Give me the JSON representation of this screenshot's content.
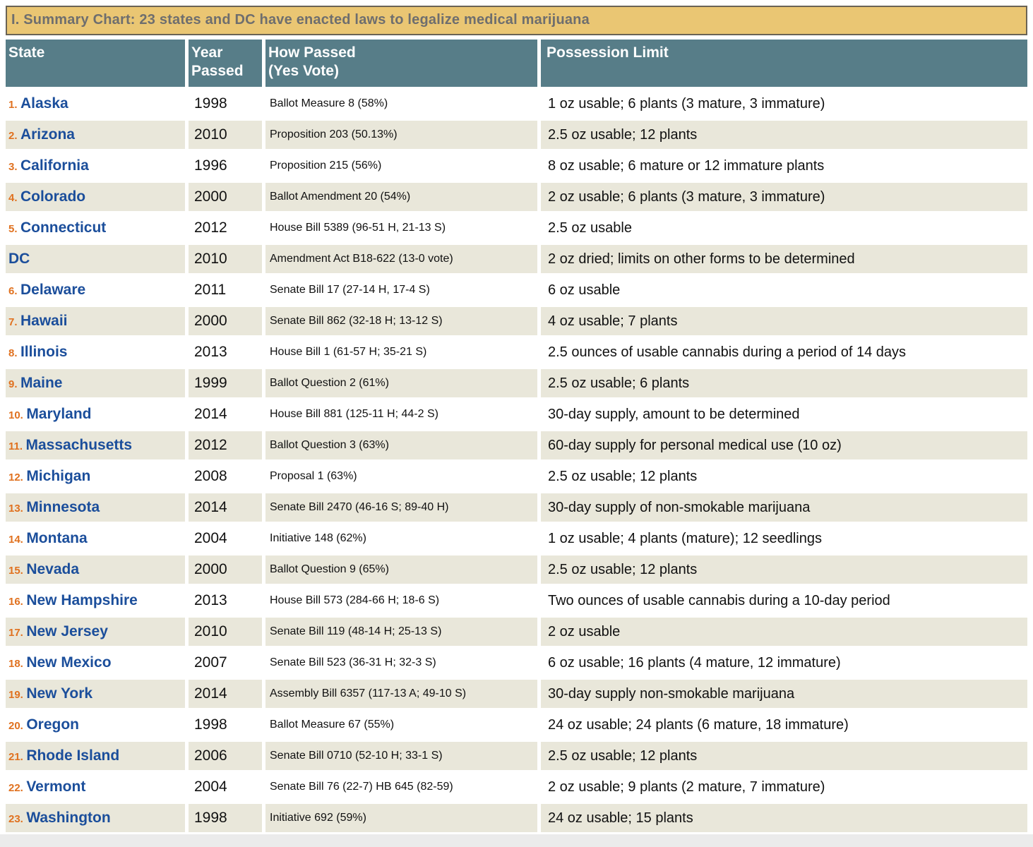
{
  "title": "I. Summary Chart: 23 states and DC have enacted laws to legalize medical marijuana",
  "colors": {
    "title_bg": "#eac673",
    "title_border": "#6a6355",
    "title_text": "#6e6e6e",
    "header_bg": "#577d88",
    "row_alt_bg": "#e9e7da",
    "state_link": "#1b4e9b",
    "num_color": "#e0711f"
  },
  "table": {
    "columns": [
      {
        "label": "State"
      },
      {
        "label": "Year\nPassed"
      },
      {
        "label": "How Passed\n(Yes Vote)"
      },
      {
        "label": "Possession Limit"
      }
    ],
    "rows": [
      {
        "num": "1.",
        "state": "Alaska",
        "year": "1998",
        "how": "Ballot Measure 8 (58%)",
        "limit": "1 oz usable; 6 plants (3 mature, 3 immature)"
      },
      {
        "num": "2.",
        "state": "Arizona",
        "year": "2010",
        "how": "Proposition 203 (50.13%)",
        "limit": "2.5 oz usable; 12 plants"
      },
      {
        "num": "3.",
        "state": "California",
        "year": "1996",
        "how": "Proposition 215 (56%)",
        "limit": "8 oz usable; 6 mature or 12 immature plants"
      },
      {
        "num": "4.",
        "state": "Colorado",
        "year": "2000",
        "how": "Ballot Amendment 20 (54%)",
        "limit": "2 oz usable; 6 plants (3 mature, 3 immature)"
      },
      {
        "num": "5.",
        "state": "Connecticut",
        "year": "2012",
        "how": "House Bill 5389 (96-51 H, 21-13 S)",
        "limit": "2.5 oz usable"
      },
      {
        "num": "",
        "state": "DC",
        "year": "2010",
        "how": "Amendment Act B18-622 (13-0 vote)",
        "limit": "2 oz dried; limits on other forms to be determined"
      },
      {
        "num": "6.",
        "state": "Delaware",
        "year": "2011",
        "how": "Senate Bill 17 (27-14 H, 17-4 S)",
        "limit": "6 oz usable"
      },
      {
        "num": "7.",
        "state": "Hawaii",
        "year": "2000",
        "how": "Senate Bill 862 (32-18 H; 13-12 S)",
        "limit": "4 oz usable; 7 plants"
      },
      {
        "num": "8.",
        "state": "Illinois",
        "year": "2013",
        "how": "House Bill 1 (61-57 H; 35-21 S)",
        "limit": "2.5 ounces of usable cannabis during a period of 14 days"
      },
      {
        "num": "9.",
        "state": "Maine",
        "year": "1999",
        "how": "Ballot Question 2 (61%)",
        "limit": "2.5 oz usable; 6 plants"
      },
      {
        "num": "10.",
        "state": "Maryland",
        "year": "2014",
        "how": "House Bill 881 (125-11 H; 44-2 S)",
        "limit": "30-day supply, amount to be determined"
      },
      {
        "num": "11.",
        "state": "Massachusetts",
        "year": "2012",
        "how": "Ballot Question 3 (63%)",
        "limit": "60-day supply for personal medical use (10 oz)"
      },
      {
        "num": "12.",
        "state": "Michigan",
        "year": "2008",
        "how": "Proposal 1 (63%)",
        "limit": "2.5 oz usable; 12 plants"
      },
      {
        "num": "13.",
        "state": "Minnesota",
        "year": "2014",
        "how": "Senate Bill 2470 (46-16 S; 89-40 H)",
        "limit": "30-day supply of non-smokable marijuana"
      },
      {
        "num": "14.",
        "state": "Montana",
        "year": "2004",
        "how": "Initiative 148 (62%)",
        "limit": "1 oz usable; 4 plants (mature); 12 seedlings"
      },
      {
        "num": "15.",
        "state": "Nevada",
        "year": "2000",
        "how": "Ballot Question 9 (65%)",
        "limit": "2.5 oz usable; 12 plants"
      },
      {
        "num": "16.",
        "state": "New Hampshire",
        "year": "2013",
        "how": "House Bill 573 (284-66 H; 18-6 S)",
        "limit": "Two ounces of usable cannabis during a 10-day period"
      },
      {
        "num": "17.",
        "state": "New Jersey",
        "year": "2010",
        "how": "Senate Bill 119 (48-14 H; 25-13 S)",
        "limit": "2 oz usable"
      },
      {
        "num": "18.",
        "state": "New Mexico",
        "year": "2007",
        "how": "Senate Bill 523 (36-31 H; 32-3 S)",
        "limit": "6 oz usable; 16 plants (4 mature, 12 immature)"
      },
      {
        "num": "19.",
        "state": "New York",
        "year": "2014",
        "how": "Assembly Bill 6357 (117-13 A; 49-10 S)",
        "limit": "30-day supply non-smokable marijuana"
      },
      {
        "num": "20.",
        "state": "Oregon",
        "year": "1998",
        "how": "Ballot Measure 67 (55%)",
        "limit": "24 oz usable; 24 plants (6 mature, 18 immature)"
      },
      {
        "num": "21.",
        "state": "Rhode Island",
        "year": "2006",
        "how": "Senate Bill 0710 (52-10 H; 33-1 S)",
        "limit": "2.5 oz usable; 12 plants"
      },
      {
        "num": "22.",
        "state": "Vermont",
        "year": "2004",
        "how": "Senate Bill 76 (22-7) HB 645 (82-59)",
        "limit": "2 oz usable; 9 plants (2 mature, 7 immature)"
      },
      {
        "num": "23.",
        "state": "Washington",
        "year": "1998",
        "how": "Initiative 692 (59%)",
        "limit": "24 oz usable; 15 plants"
      }
    ]
  }
}
